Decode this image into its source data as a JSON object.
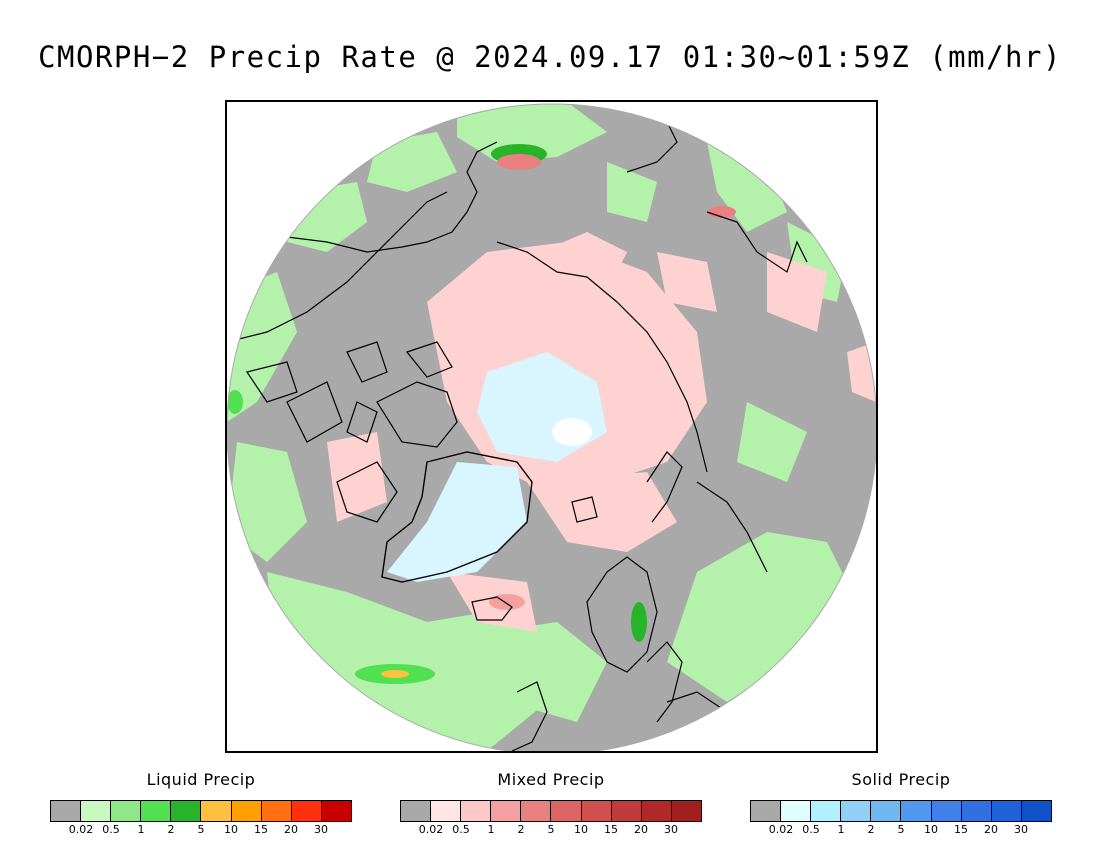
{
  "title": "CMORPH−2 Precip Rate @ 2024.09.17 01:30~01:59Z (mm/hr)",
  "map": {
    "projection": "north polar stereographic",
    "regions": {
      "no_precip": "#a9a9a9",
      "liquid": "#b4f2ac",
      "mixed": "#ffd2d2",
      "solid": "#d9f5ff",
      "coastline": "#000000"
    }
  },
  "legends": [
    {
      "title": "Liquid Precip",
      "colors": [
        "#a9a9a9",
        "#c8fac0",
        "#8ee888",
        "#50e050",
        "#28b428",
        "#ffc040",
        "#ffa000",
        "#ff7010",
        "#ff3010",
        "#c80000"
      ],
      "ticks": [
        "0.02",
        "0.5",
        "1",
        "2",
        "5",
        "10",
        "15",
        "20",
        "30"
      ]
    },
    {
      "title": "Mixed Precip",
      "colors": [
        "#a9a9a9",
        "#ffe6e6",
        "#ffc8c8",
        "#f4a0a0",
        "#e88080",
        "#dc6464",
        "#d05050",
        "#c03c3c",
        "#b02828",
        "#a02020"
      ],
      "ticks": [
        "0.02",
        "0.5",
        "1",
        "2",
        "5",
        "10",
        "15",
        "20",
        "30"
      ]
    },
    {
      "title": "Solid Precip",
      "colors": [
        "#a9a9a9",
        "#e0ffff",
        "#b0f0ff",
        "#90d0f8",
        "#70b8f0",
        "#5098f0",
        "#4080e8",
        "#3070e0",
        "#2060d8",
        "#1050c8"
      ],
      "ticks": [
        "0.02",
        "0.5",
        "1",
        "2",
        "5",
        "10",
        "15",
        "20",
        "30"
      ]
    }
  ]
}
